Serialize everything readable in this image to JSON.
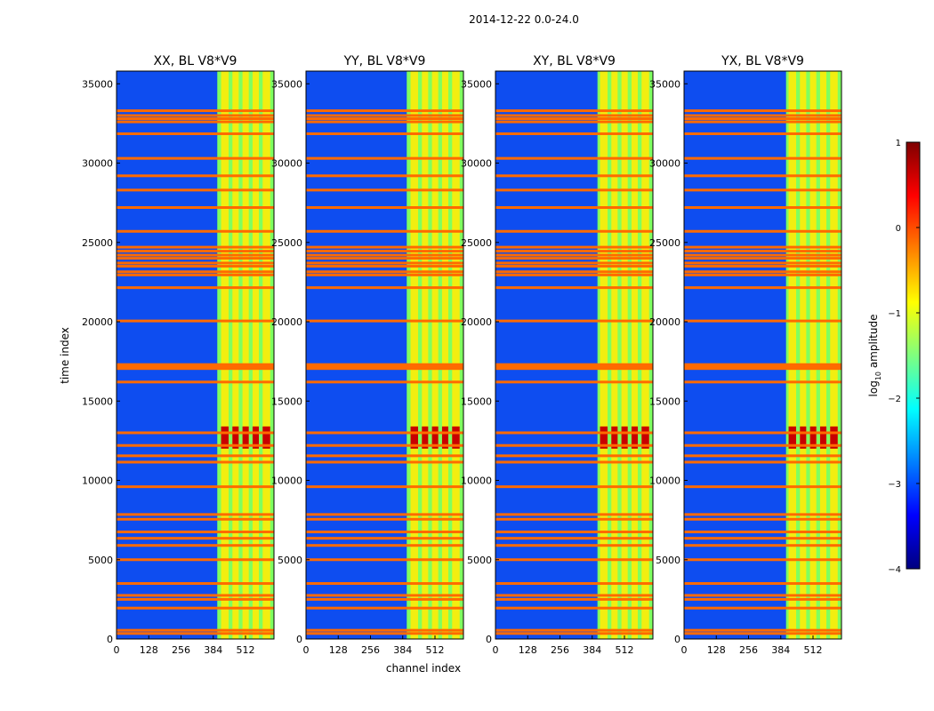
{
  "chart_data": {
    "type": "heatmap",
    "suptitle": "2014-12-22 0.0-24.0",
    "xlabel": "channel index",
    "ylabel": "time index",
    "xlim": [
      0,
      625
    ],
    "ylim": [
      0,
      35800
    ],
    "xticks": [
      0,
      128,
      256,
      384,
      512
    ],
    "yticks": [
      0,
      5000,
      10000,
      15000,
      20000,
      25000,
      30000,
      35000
    ],
    "panels": [
      {
        "title": "XX, BL V8*V9",
        "signal_start": 400
      },
      {
        "title": "YY, BL V8*V9",
        "signal_start": 400
      },
      {
        "title": "XY, BL V8*V9",
        "signal_start": 405
      },
      {
        "title": "YX, BL V8*V9",
        "signal_start": 405
      }
    ],
    "signal_channels": [
      [
        415,
        445
      ],
      [
        460,
        485
      ],
      [
        500,
        525
      ],
      [
        540,
        565
      ],
      [
        580,
        610
      ]
    ],
    "flagged_rows": [
      350,
      550,
      1950,
      2500,
      2750,
      3500,
      5000,
      5900,
      6350,
      6750,
      7550,
      7850,
      9600,
      11150,
      11550,
      12200,
      13000,
      16200,
      17050,
      17150,
      17300,
      20050,
      22150,
      22950,
      23150,
      23500,
      23700,
      24000,
      24200,
      24450,
      24700,
      25700,
      27200,
      28300,
      29200,
      30300,
      31850,
      32600,
      32800,
      33000,
      33300
    ],
    "colorbar": {
      "label": "log",
      "label_sub": "10",
      "label_rest": " amplitude",
      "min": -4,
      "max": 1,
      "ticks": [
        "1",
        "0",
        "−1",
        "−2",
        "−3",
        "−4"
      ],
      "colormap": "jet",
      "colors": [
        "#00007f",
        "#0000ff",
        "#007fff",
        "#00ffff",
        "#7fff7f",
        "#ffff00",
        "#ff7f00",
        "#ff0000",
        "#7f0000"
      ]
    },
    "hot_band": [
      12000,
      13400
    ]
  }
}
